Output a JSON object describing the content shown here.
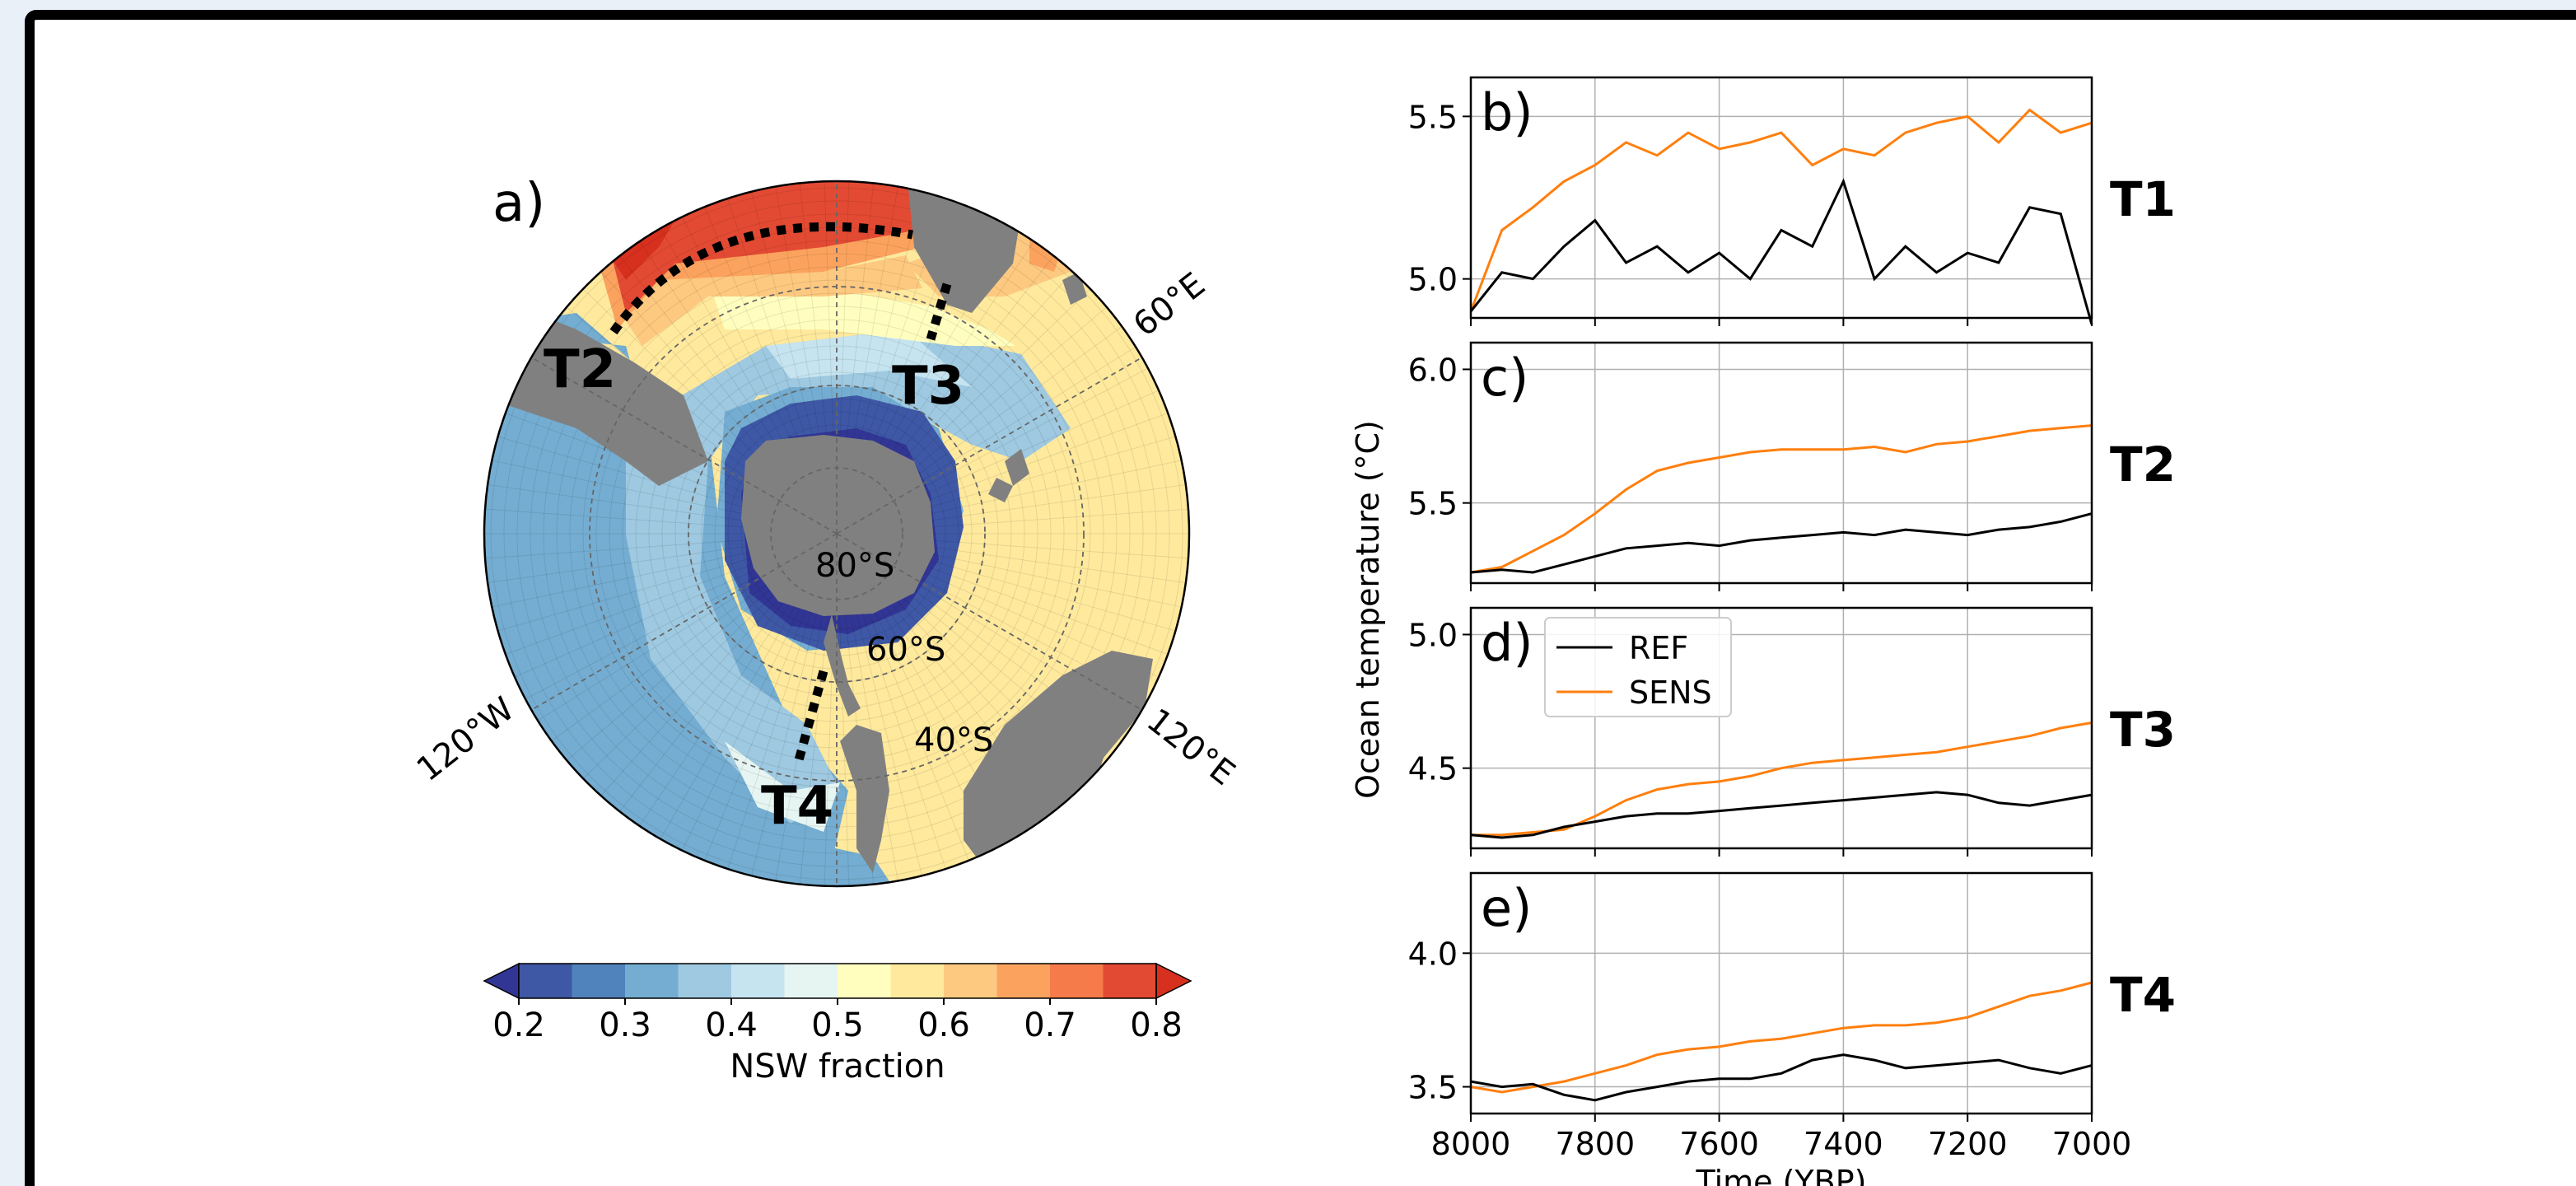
{
  "chart_data": [
    {
      "type": "heatmap",
      "panel_label": "a)",
      "projection": "south-polar stereographic",
      "transect_labels": [
        "T2",
        "T3",
        "T4"
      ],
      "lat_labels": [
        "80°S",
        "60°S",
        "40°S"
      ],
      "lon_labels": [
        "60°E",
        "120°E",
        "120°W"
      ],
      "colorbar": {
        "label": "NSW fraction",
        "ticks": [
          "0.2",
          "0.3",
          "0.4",
          "0.5",
          "0.6",
          "0.7",
          "0.8"
        ],
        "range": [
          0.2,
          0.8
        ],
        "extend": "both",
        "colors": [
          "#313695",
          "#3e58a6",
          "#5083bc",
          "#74add1",
          "#9ec9e1",
          "#c6e4ef",
          "#e6f5f2",
          "#fffebf",
          "#fee99d",
          "#fdc980",
          "#fba35e",
          "#f67b4a",
          "#e34a33",
          "#d7301f"
        ]
      }
    },
    {
      "type": "line",
      "ylabel": "Ocean temperature (°C)",
      "xlabel": "Time (YBP)",
      "xlim": [
        8000,
        7000
      ],
      "xticks": [
        "8000",
        "7800",
        "7600",
        "7400",
        "7200",
        "7000"
      ],
      "legend": {
        "placement": "upper-left of panel d",
        "entries": [
          "REF",
          "SENS"
        ]
      },
      "series_colors": {
        "REF": "#000000",
        "SENS": "#ff7f0e"
      },
      "panels": [
        {
          "label": "b)",
          "transect": "T1",
          "ylim": [
            4.88,
            5.62
          ],
          "yticks": [
            "5.0",
            "5.5"
          ],
          "x": [
            8000,
            7950,
            7900,
            7850,
            7800,
            7750,
            7700,
            7650,
            7600,
            7550,
            7500,
            7450,
            7400,
            7350,
            7300,
            7250,
            7200,
            7150,
            7100,
            7050,
            7000
          ],
          "REF": [
            4.9,
            5.02,
            5.0,
            5.1,
            5.18,
            5.05,
            5.1,
            5.02,
            5.08,
            5.0,
            5.15,
            5.1,
            5.3,
            5.0,
            5.1,
            5.02,
            5.08,
            5.05,
            5.22,
            5.2,
            4.86
          ],
          "SENS": [
            4.9,
            5.15,
            5.22,
            5.3,
            5.35,
            5.42,
            5.38,
            5.45,
            5.4,
            5.42,
            5.45,
            5.35,
            5.4,
            5.38,
            5.45,
            5.48,
            5.5,
            5.42,
            5.52,
            5.45,
            5.48
          ]
        },
        {
          "label": "c)",
          "transect": "T2",
          "ylim": [
            5.2,
            6.1
          ],
          "yticks": [
            "5.5",
            "6.0"
          ],
          "x": [
            8000,
            7950,
            7900,
            7850,
            7800,
            7750,
            7700,
            7650,
            7600,
            7550,
            7500,
            7450,
            7400,
            7350,
            7300,
            7250,
            7200,
            7150,
            7100,
            7050,
            7000
          ],
          "REF": [
            5.24,
            5.25,
            5.24,
            5.27,
            5.3,
            5.33,
            5.34,
            5.35,
            5.34,
            5.36,
            5.37,
            5.38,
            5.39,
            5.38,
            5.4,
            5.39,
            5.38,
            5.4,
            5.41,
            5.43,
            5.46
          ],
          "SENS": [
            5.24,
            5.26,
            5.32,
            5.38,
            5.46,
            5.55,
            5.62,
            5.65,
            5.67,
            5.69,
            5.7,
            5.7,
            5.7,
            5.71,
            5.69,
            5.72,
            5.73,
            5.75,
            5.77,
            5.78,
            5.79
          ]
        },
        {
          "label": "d)",
          "transect": "T3",
          "ylim": [
            4.2,
            5.1
          ],
          "yticks": [
            "4.5",
            "5.0"
          ],
          "x": [
            8000,
            7950,
            7900,
            7850,
            7800,
            7750,
            7700,
            7650,
            7600,
            7550,
            7500,
            7450,
            7400,
            7350,
            7300,
            7250,
            7200,
            7150,
            7100,
            7050,
            7000
          ],
          "REF": [
            4.25,
            4.24,
            4.25,
            4.28,
            4.3,
            4.32,
            4.33,
            4.33,
            4.34,
            4.35,
            4.36,
            4.37,
            4.38,
            4.39,
            4.4,
            4.41,
            4.4,
            4.37,
            4.36,
            4.38,
            4.4
          ],
          "SENS": [
            4.25,
            4.25,
            4.26,
            4.27,
            4.32,
            4.38,
            4.42,
            4.44,
            4.45,
            4.47,
            4.5,
            4.52,
            4.53,
            4.54,
            4.55,
            4.56,
            4.58,
            4.6,
            4.62,
            4.65,
            4.67
          ]
        },
        {
          "label": "e)",
          "transect": "T4",
          "ylim": [
            3.4,
            4.3
          ],
          "yticks": [
            "3.5",
            "4.0"
          ],
          "x": [
            8000,
            7950,
            7900,
            7850,
            7800,
            7750,
            7700,
            7650,
            7600,
            7550,
            7500,
            7450,
            7400,
            7350,
            7300,
            7250,
            7200,
            7150,
            7100,
            7050,
            7000
          ],
          "REF": [
            3.52,
            3.5,
            3.51,
            3.47,
            3.45,
            3.48,
            3.5,
            3.52,
            3.53,
            3.53,
            3.55,
            3.6,
            3.62,
            3.6,
            3.57,
            3.58,
            3.59,
            3.6,
            3.57,
            3.55,
            3.58
          ],
          "SENS": [
            3.5,
            3.48,
            3.5,
            3.52,
            3.55,
            3.58,
            3.62,
            3.64,
            3.65,
            3.67,
            3.68,
            3.7,
            3.72,
            3.73,
            3.73,
            3.74,
            3.76,
            3.8,
            3.84,
            3.86,
            3.89
          ]
        }
      ]
    }
  ]
}
